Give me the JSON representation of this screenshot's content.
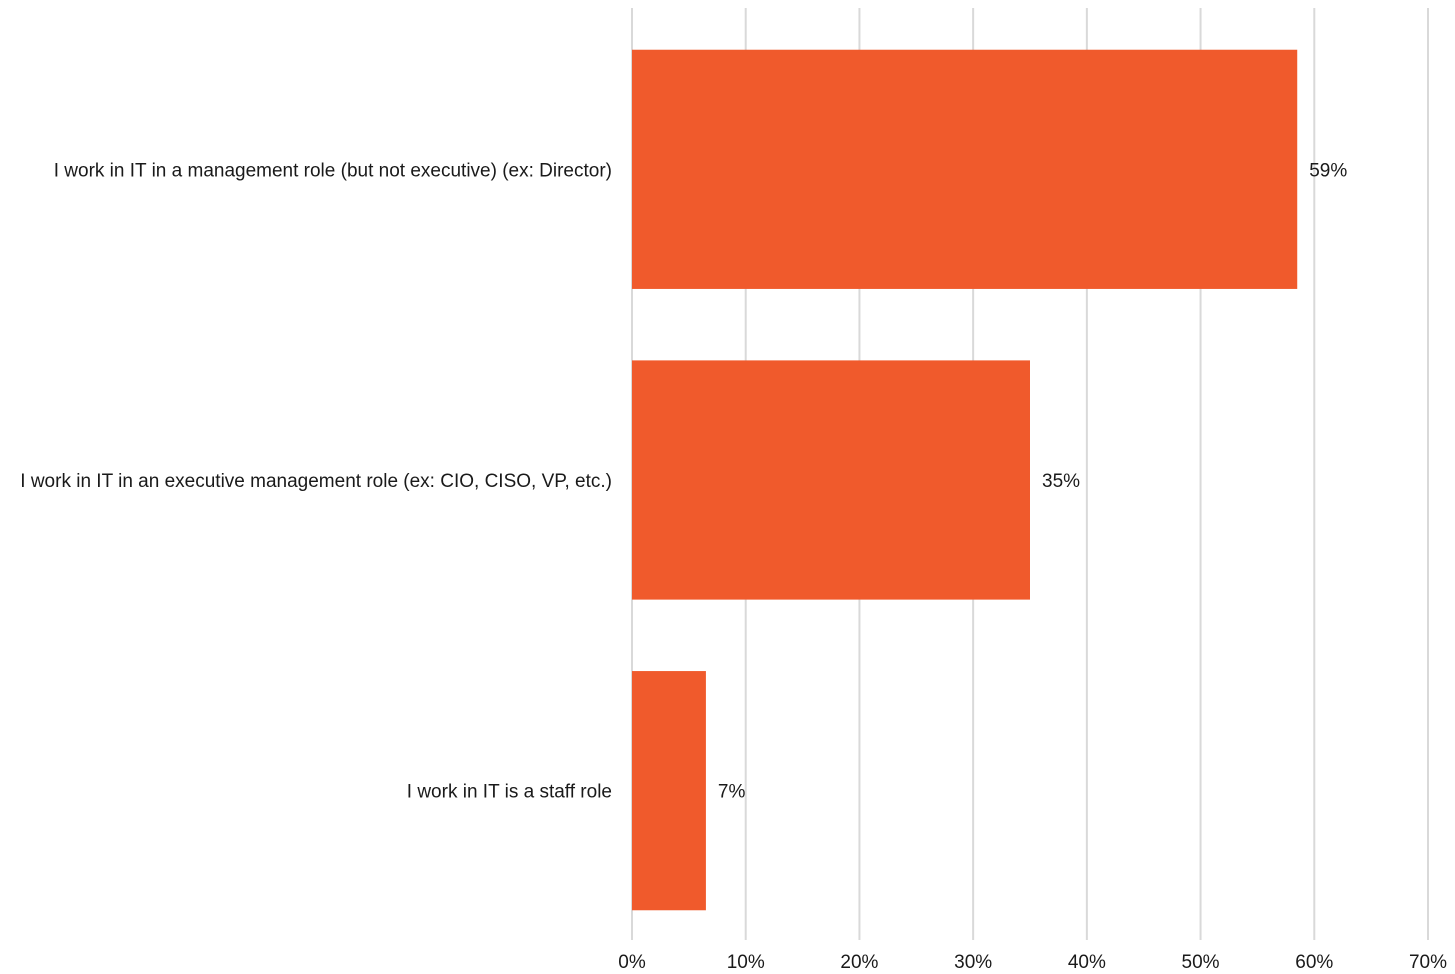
{
  "chart_data": {
    "type": "bar",
    "orientation": "horizontal",
    "categories": [
      "I work in IT in a management role (but not executive) (ex: Director)",
      "I work in IT in an executive management role (ex: CIO, CISO, VP, etc.)",
      "I work in IT is a staff role"
    ],
    "values": [
      58.5,
      35,
      6.5
    ],
    "data_labels": [
      "59%",
      "35%",
      "7%"
    ],
    "xlim": [
      0,
      70
    ],
    "x_ticks": [
      "0%",
      "10%",
      "20%",
      "30%",
      "40%",
      "50%",
      "60%",
      "70%"
    ],
    "grid": true,
    "legend": "none",
    "title": "",
    "xlabel": "",
    "ylabel": "",
    "bar_color": "#F05A2C"
  }
}
